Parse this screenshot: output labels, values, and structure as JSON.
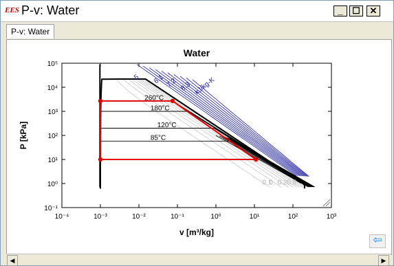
{
  "window": {
    "app_icon_text": "EES",
    "title": "P-v: Water",
    "buttons": {
      "minimize": "_",
      "maximize": "☐",
      "close": "✕"
    }
  },
  "tabs": [
    {
      "label": "P-v: Water",
      "active": true
    }
  ],
  "chart_data": {
    "type": "line",
    "title": "Water",
    "xlabel": "v [m³/kg]",
    "ylabel": "P [kPa]",
    "xscale": "log",
    "yscale": "log",
    "xlim": [
      0.0001,
      1000
    ],
    "ylim": [
      0.1,
      100000
    ],
    "x_ticks": [
      "10⁻⁴",
      "10⁻³",
      "10⁻²",
      "10⁻¹",
      "10⁰",
      "10¹",
      "10²",
      "10³"
    ],
    "y_ticks": [
      "10⁻¹",
      "10⁰",
      "10¹",
      "10²",
      "10³",
      "10⁴",
      "10⁵"
    ],
    "isotherm_labels": [
      "260°C",
      "180°C",
      "120°C",
      "85°C"
    ],
    "isentrope_labels": [
      "5",
      "6.1",
      "7.2",
      "8.3",
      "kJ/kg-K"
    ],
    "quality_labels": [
      "0.1",
      "0.",
      "0.2",
      "0.5"
    ],
    "process_points": [
      {
        "v": 0.001,
        "P": 2700
      },
      {
        "v": 0.075,
        "P": 2700
      },
      {
        "v": 11,
        "P": 10
      },
      {
        "v": 0.001,
        "P": 10
      }
    ],
    "colors": {
      "saturation_dome": "#000000",
      "process": "#e00000",
      "isentrope": "#1a1aa0",
      "isotherm": "#000000",
      "quality": "#c0c0c0"
    }
  },
  "nav": {
    "back_arrow_icon": "left-arrow-icon"
  }
}
